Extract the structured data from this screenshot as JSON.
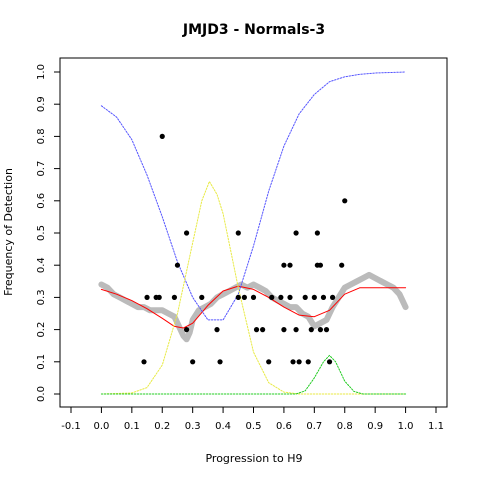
{
  "chart_data": {
    "type": "scatter",
    "title": "JMJD3 - Normals-3",
    "xlabel": "Progression to H9",
    "ylabel": "Frequency of Detection",
    "xlim": [
      -0.1,
      1.1
    ],
    "ylim": [
      0.0,
      1.0
    ],
    "xticks": [
      "-0.1",
      "0.0",
      "0.1",
      "0.2",
      "0.3",
      "0.4",
      "0.5",
      "0.6",
      "0.7",
      "0.8",
      "0.9",
      "1.0",
      "1.1"
    ],
    "yticks": [
      "0.0",
      "0.1",
      "0.2",
      "0.3",
      "0.4",
      "0.5",
      "0.6",
      "0.7",
      "0.8",
      "0.9",
      "1.0"
    ],
    "grid": false,
    "series": [
      {
        "kind": "points",
        "color": "#000000",
        "points": [
          [
            0.14,
            0.1
          ],
          [
            0.15,
            0.3
          ],
          [
            0.18,
            0.3
          ],
          [
            0.19,
            0.3
          ],
          [
            0.2,
            0.8
          ],
          [
            0.24,
            0.3
          ],
          [
            0.25,
            0.4
          ],
          [
            0.28,
            0.2
          ],
          [
            0.28,
            0.5
          ],
          [
            0.3,
            0.1
          ],
          [
            0.33,
            0.3
          ],
          [
            0.38,
            0.2
          ],
          [
            0.39,
            0.1
          ],
          [
            0.45,
            0.3
          ],
          [
            0.45,
            0.5
          ],
          [
            0.47,
            0.3
          ],
          [
            0.5,
            0.3
          ],
          [
            0.51,
            0.2
          ],
          [
            0.53,
            0.2
          ],
          [
            0.55,
            0.1
          ],
          [
            0.56,
            0.3
          ],
          [
            0.59,
            0.3
          ],
          [
            0.6,
            0.4
          ],
          [
            0.6,
            0.2
          ],
          [
            0.62,
            0.4
          ],
          [
            0.62,
            0.3
          ],
          [
            0.63,
            0.1
          ],
          [
            0.64,
            0.5
          ],
          [
            0.64,
            0.2
          ],
          [
            0.65,
            0.1
          ],
          [
            0.67,
            0.3
          ],
          [
            0.68,
            0.1
          ],
          [
            0.69,
            0.2
          ],
          [
            0.7,
            0.3
          ],
          [
            0.71,
            0.4
          ],
          [
            0.71,
            0.5
          ],
          [
            0.72,
            0.4
          ],
          [
            0.72,
            0.2
          ],
          [
            0.73,
            0.3
          ],
          [
            0.74,
            0.2
          ],
          [
            0.75,
            0.1
          ],
          [
            0.76,
            0.3
          ],
          [
            0.79,
            0.4
          ],
          [
            0.8,
            0.6
          ]
        ]
      },
      {
        "kind": "band",
        "color": "#bbbbbb",
        "points": [
          [
            0.0,
            0.34
          ],
          [
            0.02,
            0.33
          ],
          [
            0.04,
            0.31
          ],
          [
            0.06,
            0.3
          ],
          [
            0.08,
            0.29
          ],
          [
            0.1,
            0.28
          ],
          [
            0.12,
            0.27
          ],
          [
            0.14,
            0.27
          ],
          [
            0.16,
            0.26
          ],
          [
            0.18,
            0.26
          ],
          [
            0.2,
            0.26
          ],
          [
            0.22,
            0.25
          ],
          [
            0.24,
            0.24
          ],
          [
            0.26,
            0.2
          ],
          [
            0.27,
            0.18
          ],
          [
            0.28,
            0.17
          ],
          [
            0.29,
            0.19
          ],
          [
            0.3,
            0.23
          ],
          [
            0.32,
            0.26
          ],
          [
            0.34,
            0.27
          ],
          [
            0.36,
            0.28
          ],
          [
            0.38,
            0.3
          ],
          [
            0.4,
            0.31
          ],
          [
            0.42,
            0.32
          ],
          [
            0.44,
            0.33
          ],
          [
            0.46,
            0.34
          ],
          [
            0.48,
            0.33
          ],
          [
            0.5,
            0.34
          ],
          [
            0.52,
            0.33
          ],
          [
            0.54,
            0.32
          ],
          [
            0.56,
            0.3
          ],
          [
            0.58,
            0.29
          ],
          [
            0.6,
            0.28
          ],
          [
            0.62,
            0.27
          ],
          [
            0.64,
            0.27
          ],
          [
            0.66,
            0.25
          ],
          [
            0.68,
            0.24
          ],
          [
            0.7,
            0.21
          ],
          [
            0.72,
            0.22
          ],
          [
            0.74,
            0.23
          ],
          [
            0.76,
            0.27
          ],
          [
            0.78,
            0.3
          ],
          [
            0.8,
            0.33
          ],
          [
            0.82,
            0.34
          ],
          [
            0.84,
            0.35
          ],
          [
            0.86,
            0.36
          ],
          [
            0.88,
            0.37
          ],
          [
            0.9,
            0.36
          ],
          [
            0.92,
            0.35
          ],
          [
            0.94,
            0.34
          ],
          [
            0.96,
            0.33
          ],
          [
            0.98,
            0.31
          ],
          [
            1.0,
            0.27
          ]
        ]
      },
      {
        "kind": "line",
        "color": "#ff0000",
        "points": [
          [
            0.0,
            0.325
          ],
          [
            0.05,
            0.31
          ],
          [
            0.1,
            0.29
          ],
          [
            0.15,
            0.265
          ],
          [
            0.2,
            0.235
          ],
          [
            0.24,
            0.21
          ],
          [
            0.27,
            0.205
          ],
          [
            0.3,
            0.22
          ],
          [
            0.35,
            0.275
          ],
          [
            0.4,
            0.32
          ],
          [
            0.45,
            0.335
          ],
          [
            0.5,
            0.325
          ],
          [
            0.55,
            0.3
          ],
          [
            0.6,
            0.27
          ],
          [
            0.65,
            0.245
          ],
          [
            0.7,
            0.24
          ],
          [
            0.75,
            0.26
          ],
          [
            0.8,
            0.31
          ],
          [
            0.85,
            0.33
          ],
          [
            0.9,
            0.33
          ],
          [
            1.0,
            0.33
          ]
        ]
      },
      {
        "kind": "line",
        "dashed": true,
        "color": "#5555ff",
        "points": [
          [
            0.0,
            0.895
          ],
          [
            0.05,
            0.86
          ],
          [
            0.1,
            0.79
          ],
          [
            0.15,
            0.68
          ],
          [
            0.2,
            0.55
          ],
          [
            0.25,
            0.41
          ],
          [
            0.3,
            0.3
          ],
          [
            0.35,
            0.23
          ],
          [
            0.4,
            0.23
          ],
          [
            0.45,
            0.31
          ],
          [
            0.5,
            0.46
          ],
          [
            0.55,
            0.63
          ],
          [
            0.6,
            0.77
          ],
          [
            0.65,
            0.87
          ],
          [
            0.7,
            0.93
          ],
          [
            0.75,
            0.97
          ],
          [
            0.8,
            0.985
          ],
          [
            0.85,
            0.993
          ],
          [
            0.9,
            0.997
          ],
          [
            1.0,
            1.0
          ]
        ]
      },
      {
        "kind": "line",
        "dashed": true,
        "color": "#e8ea44",
        "points": [
          [
            0.0,
            0.0
          ],
          [
            0.1,
            0.003
          ],
          [
            0.15,
            0.02
          ],
          [
            0.2,
            0.09
          ],
          [
            0.25,
            0.25
          ],
          [
            0.3,
            0.47
          ],
          [
            0.33,
            0.6
          ],
          [
            0.355,
            0.66
          ],
          [
            0.38,
            0.62
          ],
          [
            0.4,
            0.56
          ],
          [
            0.45,
            0.33
          ],
          [
            0.5,
            0.13
          ],
          [
            0.55,
            0.035
          ],
          [
            0.6,
            0.006
          ],
          [
            0.65,
            0.0
          ],
          [
            1.0,
            0.0
          ]
        ]
      },
      {
        "kind": "line",
        "dashed": true,
        "color": "#22cc22",
        "points": [
          [
            0.0,
            0.0
          ],
          [
            0.64,
            0.0
          ],
          [
            0.67,
            0.01
          ],
          [
            0.7,
            0.05
          ],
          [
            0.73,
            0.1
          ],
          [
            0.75,
            0.12
          ],
          [
            0.77,
            0.1
          ],
          [
            0.8,
            0.04
          ],
          [
            0.83,
            0.008
          ],
          [
            0.86,
            0.0
          ],
          [
            1.0,
            0.0
          ]
        ]
      }
    ]
  }
}
